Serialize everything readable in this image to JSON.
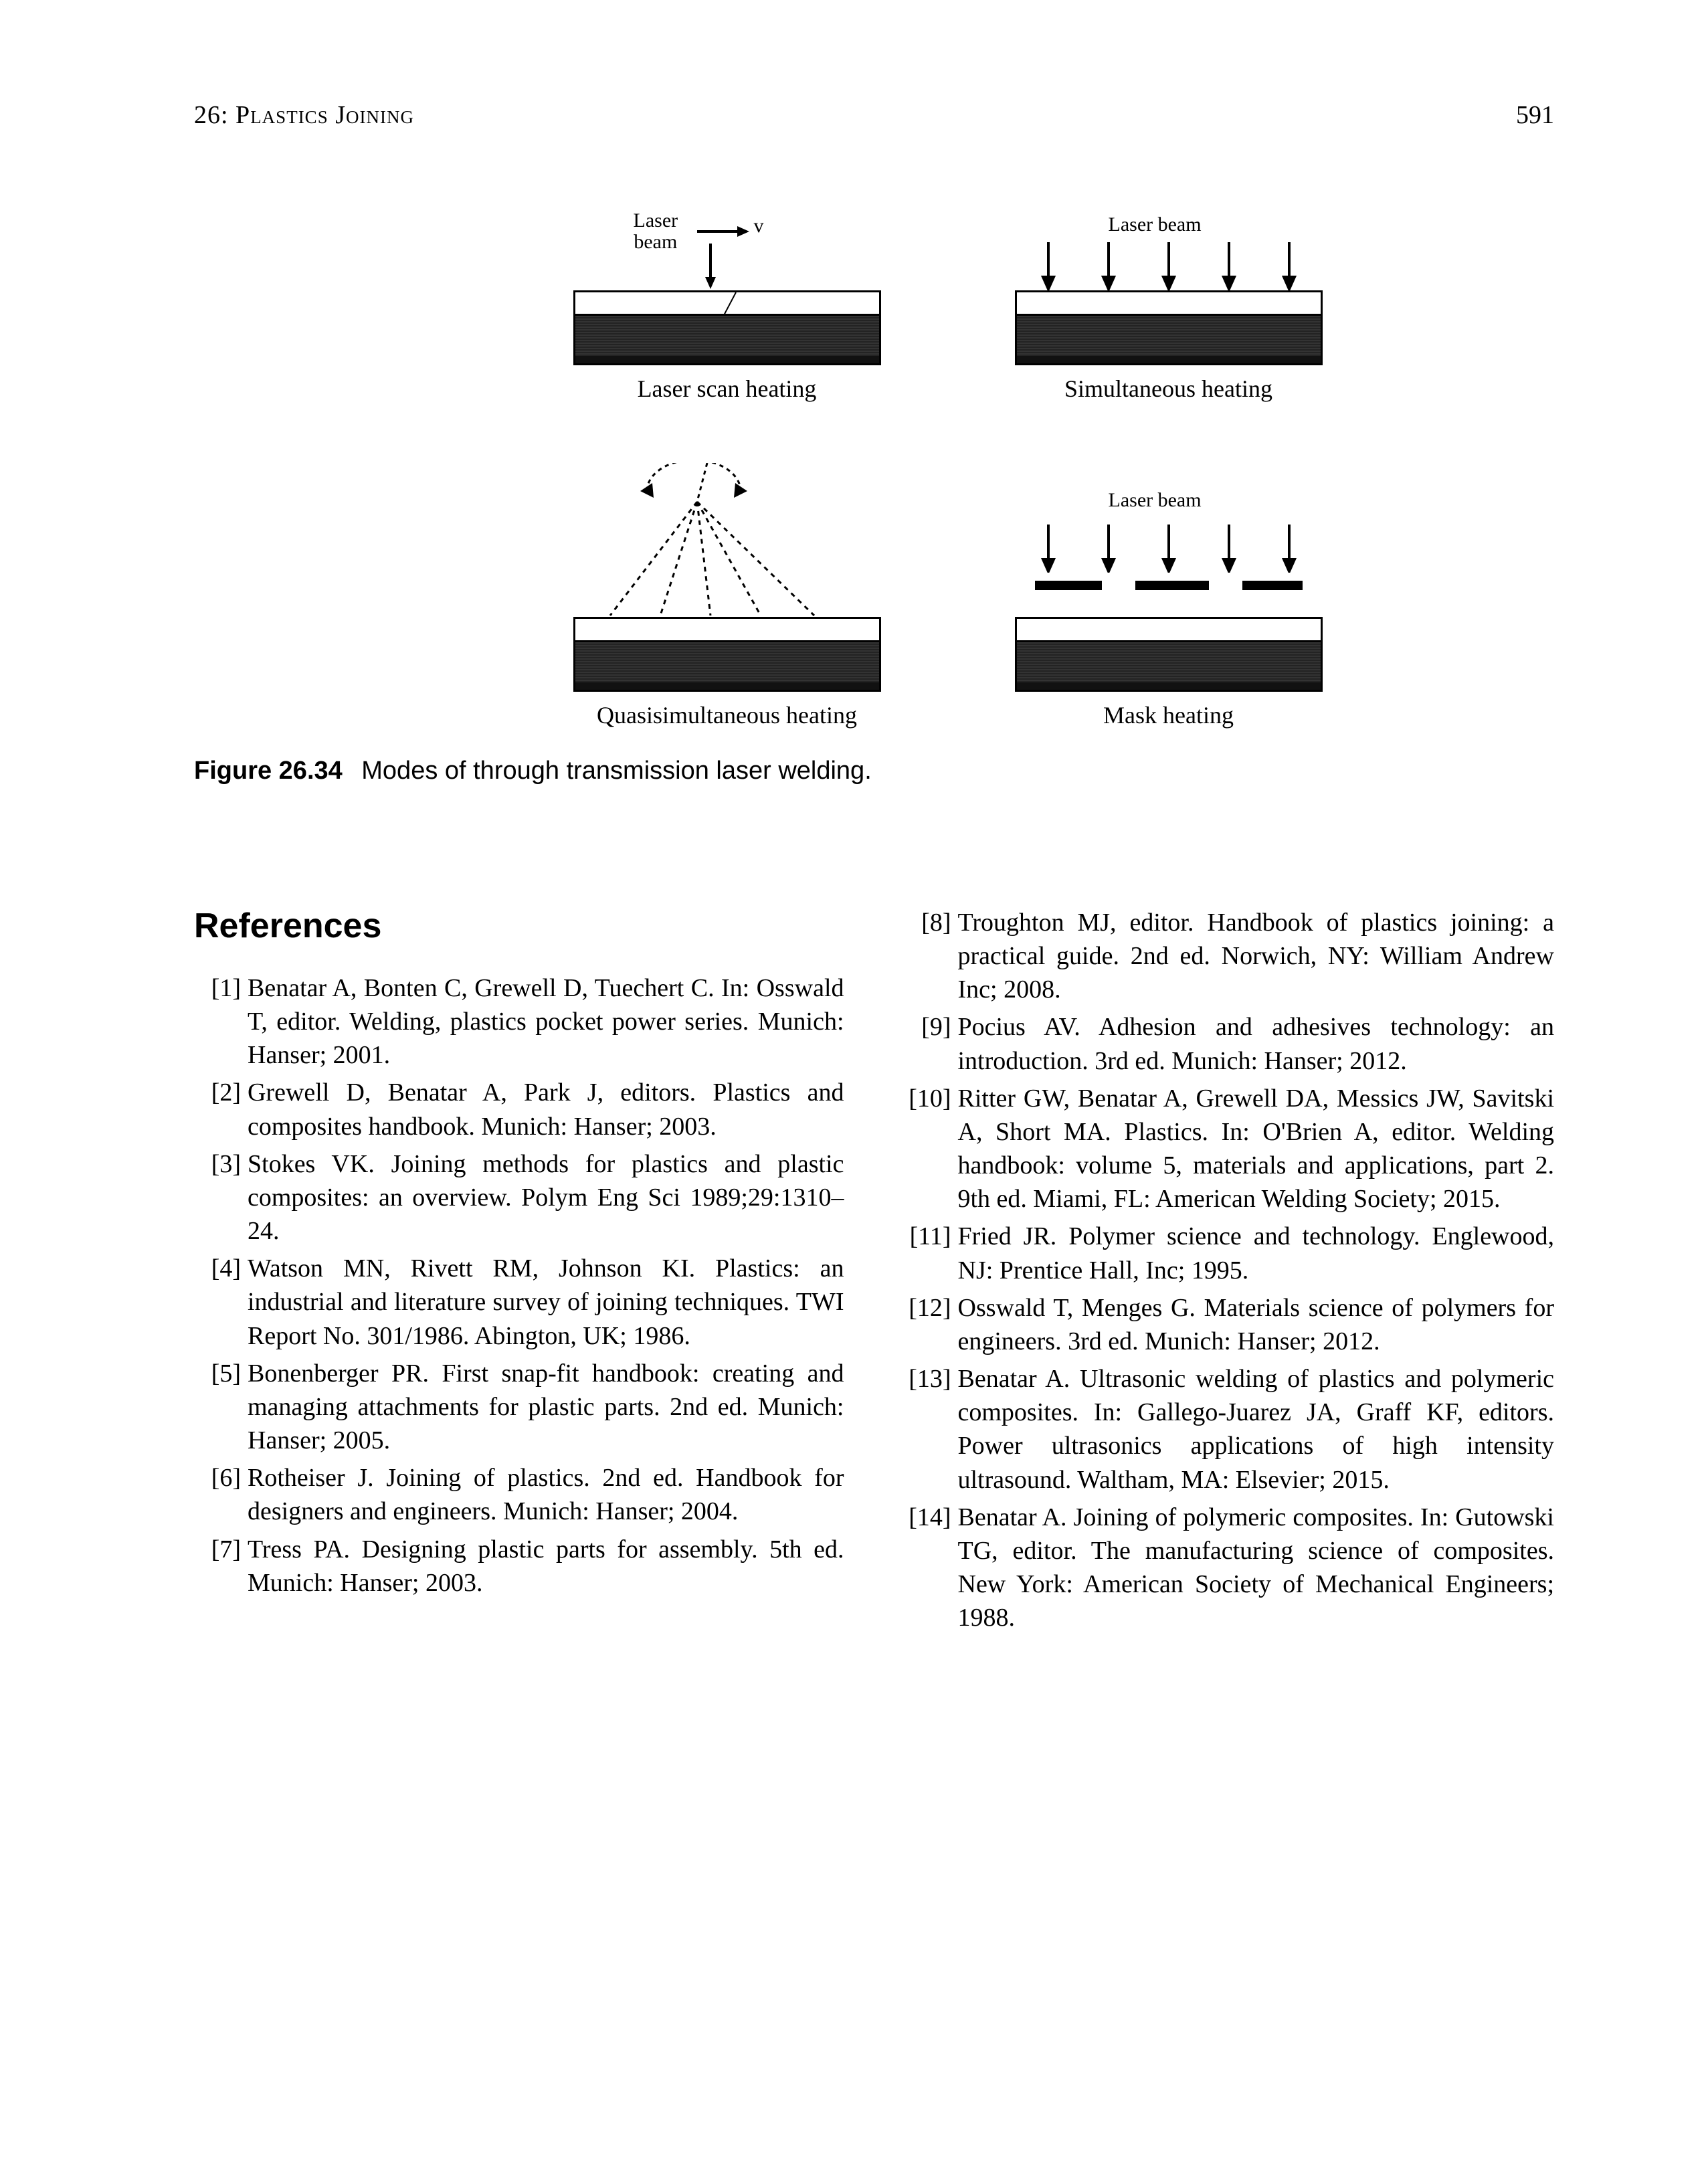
{
  "header": {
    "chapter_label": "26: Plastics Joining",
    "page_number": "591"
  },
  "figure": {
    "id_label": "Figure 26.34",
    "caption_text": "Modes of through transmission laser welding.",
    "panels": {
      "a": {
        "caption": "Laser scan heating",
        "top_label": "Laser\nbeam",
        "velocity_label": "v"
      },
      "b": {
        "caption": "Simultaneous heating",
        "top_label": "Laser beam"
      },
      "c": {
        "caption": "Quasisimultaneous heating"
      },
      "d": {
        "caption": "Mask heating",
        "top_label": "Laser beam"
      }
    },
    "colors": {
      "outline": "#000000",
      "weld_dark": "#333333",
      "background": "#ffffff"
    }
  },
  "references": {
    "heading": "References",
    "items": [
      {
        "n": "[1]",
        "t": "Benatar A, Bonten C, Grewell D, Tuechert C. In: Osswald T, editor. Welding, plastics pocket power series. Munich: Hanser; 2001."
      },
      {
        "n": "[2]",
        "t": "Grewell D, Benatar A, Park J, editors. Plastics and composites handbook. Munich: Hanser; 2003."
      },
      {
        "n": "[3]",
        "t": "Stokes VK. Joining methods for plastics and plastic composites: an overview. Polym Eng Sci 1989;29:1310–24."
      },
      {
        "n": "[4]",
        "t": "Watson MN, Rivett RM, Johnson KI. Plastics: an industrial and literature survey of joining techniques. TWI Report No. 301/1986. Abington, UK; 1986."
      },
      {
        "n": "[5]",
        "t": "Bonenberger PR. First snap-fit handbook: creating and managing attachments for plastic parts. 2nd ed. Munich: Hanser; 2005."
      },
      {
        "n": "[6]",
        "t": "Rotheiser J. Joining of plastics. 2nd ed. Handbook for designers and engineers. Munich: Hanser; 2004."
      },
      {
        "n": "[7]",
        "t": "Tress PA. Designing plastic parts for assembly. 5th ed. Munich: Hanser; 2003."
      },
      {
        "n": "[8]",
        "t": "Troughton MJ, editor. Handbook of plastics joining: a practical guide. 2nd ed. Norwich, NY: William Andrew Inc; 2008."
      },
      {
        "n": "[9]",
        "t": "Pocius AV. Adhesion and adhesives technology: an introduction. 3rd ed. Munich: Hanser; 2012."
      },
      {
        "n": "[10]",
        "t": "Ritter GW, Benatar A, Grewell DA, Messics JW, Savitski A, Short MA. Plastics. In: O'Brien A, editor. Welding handbook: volume 5, materials and applications, part 2. 9th ed. Miami, FL: American Welding Society; 2015."
      },
      {
        "n": "[11]",
        "t": "Fried JR. Polymer science and technology. Englewood, NJ: Prentice Hall, Inc; 1995."
      },
      {
        "n": "[12]",
        "t": "Osswald T, Menges G. Materials science of polymers for engineers. 3rd ed. Munich: Hanser; 2012."
      },
      {
        "n": "[13]",
        "t": "Benatar A. Ultrasonic welding of plastics and polymeric composites. In: Gallego-Juarez JA, Graff KF, editors. Power ultrasonics applications of high intensity ultrasound. Waltham, MA: Elsevier; 2015."
      },
      {
        "n": "[14]",
        "t": "Benatar A. Joining of polymeric composites. In: Gutowski TG, editor. The manufacturing science of composites. New York: American Society of Mechanical Engineers; 1988."
      }
    ]
  }
}
